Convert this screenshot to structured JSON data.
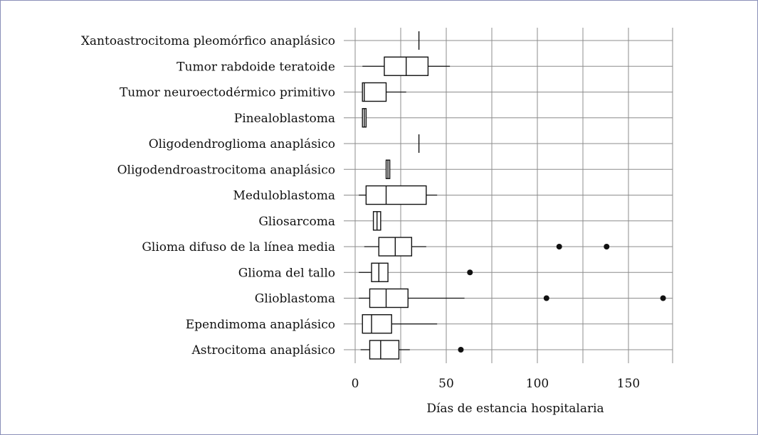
{
  "chart_data": {
    "type": "boxplot",
    "orientation": "horizontal",
    "xlabel": "Días de estancia hospitalaria",
    "xlim": [
      0,
      175
    ],
    "xticks": [
      0,
      50,
      100,
      150
    ],
    "grid": true,
    "categories": [
      {
        "name": "Xantoastrocitoma pleomórfico anaplásico",
        "whisker_low": 35,
        "q1": 35,
        "median": 35,
        "q3": 35,
        "whisker_high": 35,
        "outliers": []
      },
      {
        "name": "Tumor rabdoide teratoide",
        "whisker_low": 4,
        "q1": 16,
        "median": 28,
        "q3": 40,
        "whisker_high": 52,
        "outliers": []
      },
      {
        "name": "Tumor neuroectodérmico primitivo",
        "whisker_low": 4,
        "q1": 4,
        "median": 5,
        "q3": 17,
        "whisker_high": 28,
        "outliers": []
      },
      {
        "name": "Pinealoblastoma",
        "whisker_low": 4,
        "q1": 4,
        "median": 5,
        "q3": 6,
        "whisker_high": 6,
        "outliers": []
      },
      {
        "name": "Oligodendroglioma anaplásico",
        "whisker_low": 35,
        "q1": 35,
        "median": 35,
        "q3": 35,
        "whisker_high": 35,
        "outliers": []
      },
      {
        "name": "Oligodendroastrocitoma anaplásico",
        "whisker_low": 17,
        "q1": 17,
        "median": 18,
        "q3": 19,
        "whisker_high": 19,
        "outliers": []
      },
      {
        "name": "Meduloblastoma",
        "whisker_low": 2,
        "q1": 6,
        "median": 17,
        "q3": 39,
        "whisker_high": 45,
        "outliers": []
      },
      {
        "name": "Gliosarcoma",
        "whisker_low": 10,
        "q1": 10,
        "median": 12,
        "q3": 14,
        "whisker_high": 14,
        "outliers": []
      },
      {
        "name": "Glioma difuso de la línea media",
        "whisker_low": 5,
        "q1": 13,
        "median": 22,
        "q3": 31,
        "whisker_high": 39,
        "outliers": [
          112,
          138
        ]
      },
      {
        "name": "Glioma del tallo",
        "whisker_low": 2,
        "q1": 9,
        "median": 13,
        "q3": 18,
        "whisker_high": 18,
        "outliers": [
          63
        ]
      },
      {
        "name": "Glioblastoma",
        "whisker_low": 2,
        "q1": 8,
        "median": 17,
        "q3": 29,
        "whisker_high": 60,
        "outliers": [
          105,
          169
        ]
      },
      {
        "name": "Ependimoma anaplásico",
        "whisker_low": 4,
        "q1": 4,
        "median": 9,
        "q3": 20,
        "whisker_high": 45,
        "outliers": []
      },
      {
        "name": "Astrocitoma anaplásico",
        "whisker_low": 3,
        "q1": 8,
        "median": 14,
        "q3": 24,
        "whisker_high": 30,
        "outliers": [
          58
        ]
      }
    ]
  }
}
